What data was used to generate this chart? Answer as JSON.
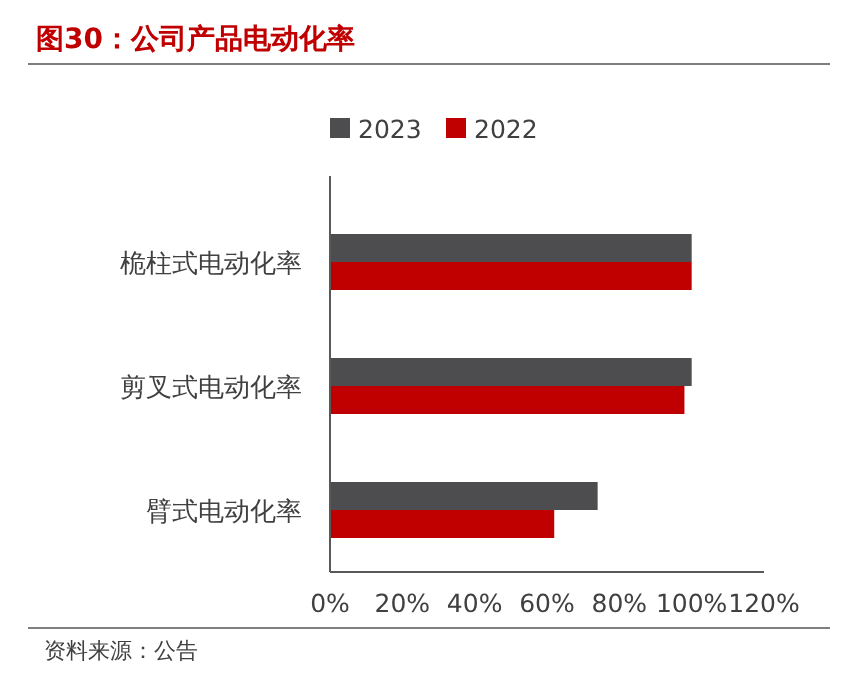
{
  "chart_data": {
    "type": "bar",
    "orientation": "horizontal",
    "title": "图30：公司产品电动化率",
    "annotations": [
      "资料来源：公告"
    ],
    "categories": [
      "桅柱式电动化率",
      "剪叉式电动化率",
      "臂式电动化率"
    ],
    "series": [
      {
        "name": "2023",
        "color": "#4d4d4f",
        "values": [
          100,
          100,
          74
        ]
      },
      {
        "name": "2022",
        "color": "#c00000",
        "values": [
          100,
          98,
          62
        ]
      }
    ],
    "xlim": [
      0,
      120
    ],
    "xticks": [
      {
        "value": 0,
        "label": "0%"
      },
      {
        "value": 20,
        "label": "20%"
      },
      {
        "value": 40,
        "label": "40%"
      },
      {
        "value": 60,
        "label": "60%"
      },
      {
        "value": 80,
        "label": "80%"
      },
      {
        "value": 100,
        "label": "100%"
      },
      {
        "value": 120,
        "label": "120%"
      }
    ],
    "grid": false,
    "legend": "top"
  }
}
